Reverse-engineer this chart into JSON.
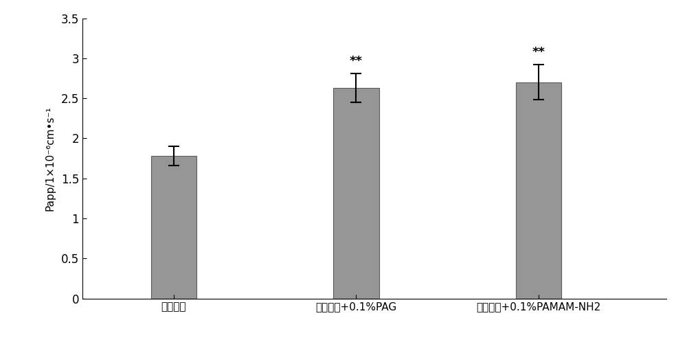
{
  "categories": [
    "吴茶茴碰",
    "吴茶茴碰+0.1%PAG",
    "吴茶茴碰+0.1%PAMAM-NH2"
  ],
  "values": [
    1.78,
    2.63,
    2.7
  ],
  "errors": [
    0.12,
    0.18,
    0.22
  ],
  "bar_color": "#969696",
  "bar_edgecolor": "#5a5a5a",
  "ylabel": "Papp/1×10⁻⁶cm•s⁻¹",
  "ylim": [
    0,
    3.5
  ],
  "yticks": [
    0,
    0.5,
    1.0,
    1.5,
    2.0,
    2.5,
    3.0,
    3.5
  ],
  "ytick_labels": [
    "0",
    "0.5",
    "1",
    "1.5",
    "2",
    "2.5",
    "3",
    "3.5"
  ],
  "significance": [
    "",
    "**",
    "**"
  ],
  "bar_width": 0.25,
  "figsize": [
    10.0,
    5.3
  ],
  "dpi": 100,
  "background_color": "#ffffff",
  "sig_fontsize": 13,
  "tick_fontsize": 12,
  "ylabel_fontsize": 11,
  "xlabel_fontsize": 11,
  "x_positions": [
    1,
    2,
    3
  ]
}
